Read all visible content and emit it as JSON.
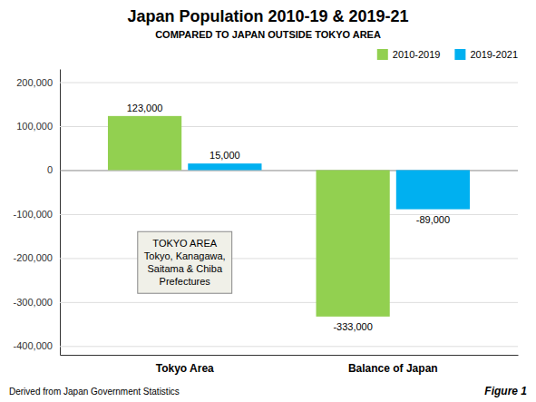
{
  "chart_data": {
    "type": "bar",
    "title": "Japan Population 2010-19 & 2019-21",
    "subtitle": "COMPARED TO JAPAN OUTSIDE TOKYO AREA",
    "categories": [
      "Tokyo Area",
      "Balance of Japan"
    ],
    "series": [
      {
        "name": "2010-2019",
        "color": "#92D050",
        "values": [
          123000,
          -333000
        ],
        "value_labels": [
          "123,000",
          "-333,000"
        ]
      },
      {
        "name": "2019-2021",
        "color": "#00B0F0",
        "values": [
          15000,
          -89000
        ],
        "value_labels": [
          "15,000",
          "-89,000"
        ]
      }
    ],
    "ylim": [
      -420000,
      230000
    ],
    "yticks": [
      {
        "value": -400000,
        "label": "-400,000"
      },
      {
        "value": -300000,
        "label": "-300,000"
      },
      {
        "value": -200000,
        "label": "-200,000"
      },
      {
        "value": -100000,
        "label": "-100,000"
      },
      0,
      {
        "value": 100000,
        "label": "100,000"
      },
      {
        "value": 200000,
        "label": "200,000"
      }
    ],
    "grid": true,
    "legend": "upper right",
    "data_labels": true,
    "annotations": [
      "TOKYO AREA\nTokyo, Kanagawa,\nSaitama & Chiba\nPrefectures",
      "Derived from Japan Government Statistics",
      "Figure 1"
    ]
  }
}
